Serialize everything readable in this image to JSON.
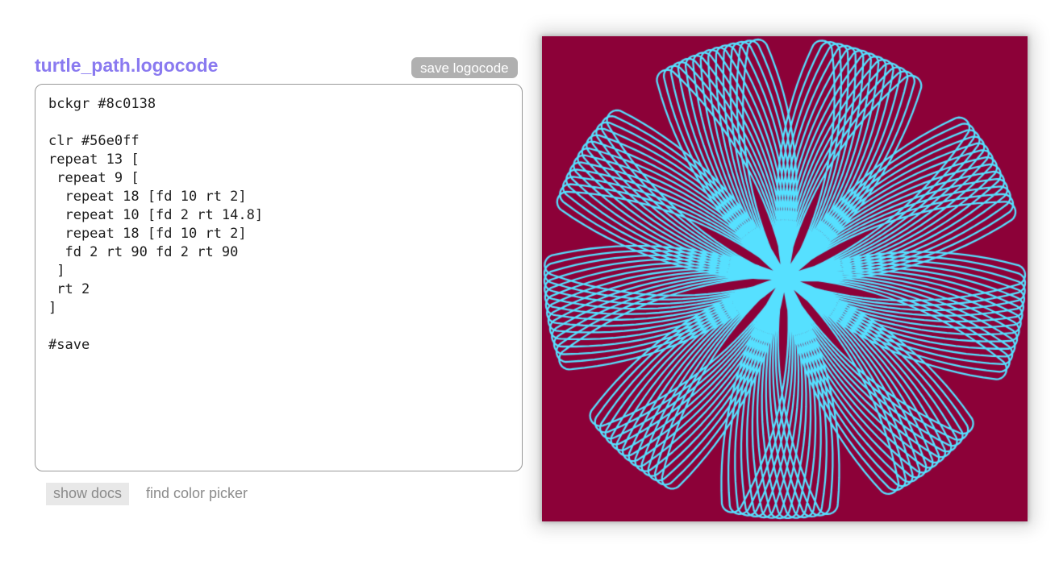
{
  "header": {
    "title": "turtle_path.logocode",
    "save_button": "save logocode"
  },
  "editor": {
    "code": "bckgr #8c0138\n\nclr #56e0ff\nrepeat 13 [\n repeat 9 [\n  repeat 18 [fd 10 rt 2]\n  repeat 10 [fd 2 rt 14.8]\n  repeat 18 [fd 10 rt 2]\n  fd 2 rt 90 fd 2 rt 90\n ]\n rt 2\n]\n\n#save"
  },
  "footer": {
    "show_docs": "show docs",
    "find_color_picker": "find color picker"
  },
  "canvas": {
    "background": "#8c0138",
    "stroke": "#56e0ff"
  },
  "theme": {
    "title_color": "#8a7af0",
    "save_button_bg": "#b0b0b0",
    "save_button_text": "#ffffff",
    "code_text": "#1c1c1c",
    "footer_text": "#8b8b8b",
    "canvas_background": "#8c0138",
    "turtle_stroke": "#56e0ff"
  }
}
